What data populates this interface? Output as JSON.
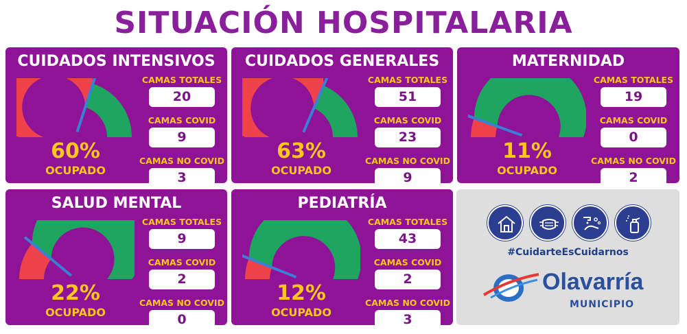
{
  "title": "SITUACIÓN HOSPITALARIA",
  "labels": {
    "camas_totales": "CAMAS TOTALES",
    "camas_covid": "CAMAS COVID",
    "camas_no_covid": "CAMAS NO COVID",
    "ocupado": "OCUPADO"
  },
  "colors": {
    "card_bg": "#8f1396",
    "title": "#8a1f9c",
    "accent_yellow": "#ffc61c",
    "gauge_red": "#f0424a",
    "gauge_green": "#1ea660",
    "needle": "#3a7fd5",
    "icon_blue": "#2c3e8f"
  },
  "units": [
    {
      "name": "CUIDADOS INTENSIVOS",
      "occupancy": 0.6,
      "pct_label": "60%",
      "camas_totales": "20",
      "camas_covid": "9",
      "camas_no_covid": "3"
    },
    {
      "name": "CUIDADOS GENERALES",
      "occupancy": 0.63,
      "pct_label": "63%",
      "camas_totales": "51",
      "camas_covid": "23",
      "camas_no_covid": "9"
    },
    {
      "name": "MATERNIDAD",
      "occupancy": 0.11,
      "pct_label": "11%",
      "camas_totales": "19",
      "camas_covid": "0",
      "camas_no_covid": "2"
    },
    {
      "name": "SALUD MENTAL",
      "occupancy": 0.22,
      "pct_label": "22%",
      "camas_totales": "9",
      "camas_covid": "2",
      "camas_no_covid": "0"
    },
    {
      "name": "PEDIATRÍA",
      "occupancy": 0.12,
      "pct_label": "12%",
      "camas_totales": "43",
      "camas_covid": "2",
      "camas_no_covid": "3"
    }
  ],
  "info": {
    "icons": [
      "house-icon",
      "face-mask-icon",
      "hand-washing-icon",
      "sanitizer-spray-icon"
    ],
    "hashtag": "#CuidarteEsCuidarnos",
    "logo_name": "Olavarría",
    "logo_sub": "MUNICIPIO"
  }
}
